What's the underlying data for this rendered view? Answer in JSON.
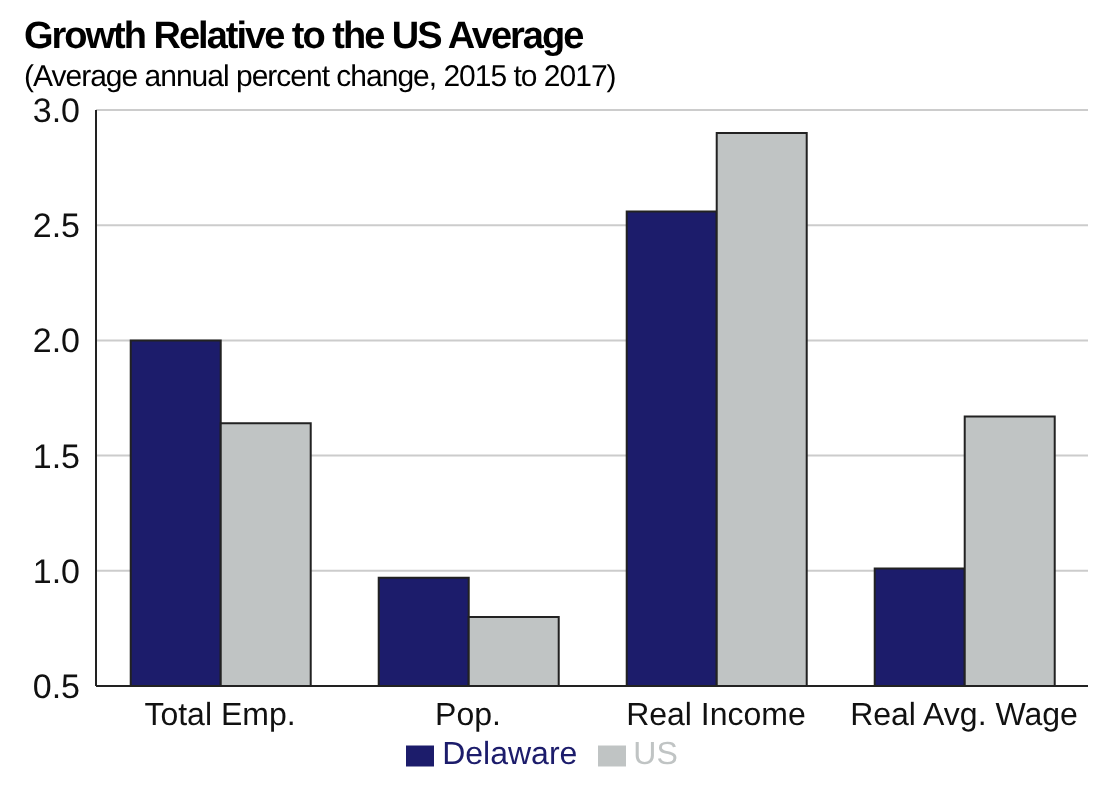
{
  "chart_data": {
    "type": "bar",
    "title": "Growth Relative to the US Average",
    "subtitle": "(Average annual percent change, 2015 to 2017)",
    "categories": [
      "Total Emp.",
      "Pop.",
      "Real Income",
      "Real Avg. Wage"
    ],
    "series": [
      {
        "name": "Delaware",
        "color": "#1c1c6b",
        "values": [
          2.0,
          0.97,
          2.56,
          1.01
        ]
      },
      {
        "name": "US",
        "color": "#c0c4c4",
        "values": [
          1.64,
          0.8,
          2.9,
          1.67
        ]
      }
    ],
    "ylim": [
      0.5,
      3.0
    ],
    "yticks": [
      {
        "value": 0.5,
        "label": "0.5"
      },
      {
        "value": 1,
        "label": "1.0"
      },
      {
        "value": 1.5,
        "label": "1.5"
      },
      {
        "value": 2,
        "label": "2.0"
      },
      {
        "value": 2.5,
        "label": "2.5"
      },
      {
        "value": 3,
        "label": "3.0"
      }
    ],
    "grid": "y",
    "legend": "bottom"
  }
}
